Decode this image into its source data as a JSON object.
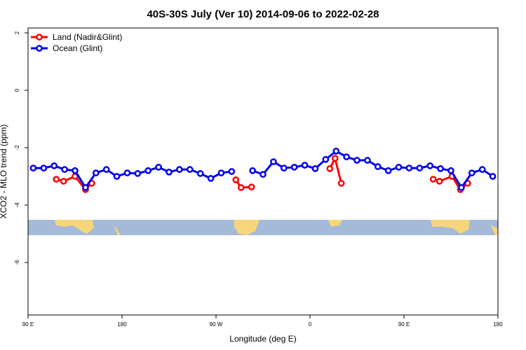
{
  "chart_data": {
    "type": "line",
    "title": "40S-30S July (Ver 10)   2014-09-06 to 2022-02-28",
    "x_label": "Longitude (deg E)",
    "y_label": "XCO2 - MLO trend (ppm)",
    "xlim": [
      90,
      540
    ],
    "ylim": [
      -7.83,
      2.17
    ],
    "xticks": [
      {
        "value": 90,
        "label": "90 E"
      },
      {
        "value": 180,
        "label": "180"
      },
      {
        "value": 270,
        "label": "90 W"
      },
      {
        "value": 360,
        "label": "0"
      },
      {
        "value": 450,
        "label": "90 E"
      },
      {
        "value": 540,
        "label": "180"
      }
    ],
    "yticks": [
      2,
      0,
      -2,
      -4,
      -6
    ],
    "legend": "top-left",
    "series": [
      {
        "name": "Land (Nadir&Glint)",
        "color": "#ff0000",
        "x": [
          117,
          124,
          135,
          145,
          151,
          null,
          289,
          294,
          304,
          null,
          379,
          384,
          390,
          null,
          478,
          484,
          496,
          504,
          511
        ],
        "values": [
          -3.1,
          -3.17,
          -3.0,
          -3.46,
          -3.24,
          null,
          -3.12,
          -3.39,
          -3.37,
          null,
          -2.73,
          -2.37,
          -3.24,
          null,
          -3.1,
          -3.17,
          -3.0,
          -3.46,
          -3.24
        ]
      },
      {
        "name": "Ocean (Glint)",
        "color": "#0000ee",
        "x": [
          95,
          105,
          115,
          125,
          135,
          145,
          155,
          165,
          175,
          185,
          195,
          205,
          215,
          225,
          235,
          245,
          255,
          265,
          275,
          285,
          295,
          305,
          315,
          325,
          335,
          345,
          355,
          365,
          375,
          385,
          395,
          405,
          415,
          425,
          435,
          445,
          455,
          465,
          475,
          485,
          495,
          505,
          515,
          525,
          535
        ],
        "values": [
          -2.71,
          -2.71,
          -2.63,
          -2.76,
          -2.8,
          -3.39,
          -2.88,
          -2.76,
          -3.0,
          -2.88,
          -2.9,
          -2.8,
          -2.68,
          -2.85,
          -2.76,
          -2.76,
          -2.9,
          -3.07,
          -2.88,
          -2.83,
          null,
          -2.8,
          -2.93,
          -2.49,
          -2.71,
          -2.68,
          -2.61,
          -2.73,
          -2.41,
          -2.12,
          -2.32,
          -2.44,
          -2.44,
          -2.66,
          -2.8,
          -2.68,
          -2.71,
          -2.71,
          -2.63,
          -2.73,
          -2.8,
          -3.39,
          -2.88,
          -2.76,
          -3.0
        ]
      }
    ]
  }
}
